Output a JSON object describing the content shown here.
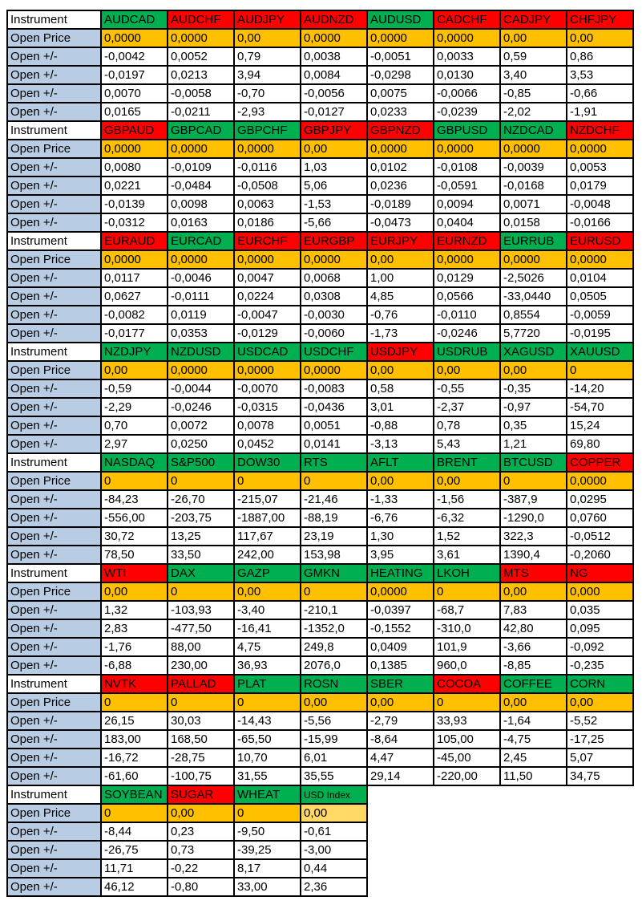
{
  "labels": {
    "instrument": "Instrument",
    "open_price": "Open Price",
    "open_change": "Open +/-"
  },
  "colors": {
    "header_green": "#00b050",
    "header_red": "#ff0000",
    "open_price_orange": "#ffc000",
    "open_price_light_orange": "#ffd966",
    "row_label_blue": "#b8cce4",
    "grid_black": "#000000"
  },
  "columns_per_block": 8,
  "blocks": [
    {
      "instruments": [
        {
          "name": "AUDCAD",
          "color": "green",
          "open_price": "0,0000",
          "changes": [
            "-0,0042",
            "-0,0197",
            "0,0070",
            "0,0165"
          ]
        },
        {
          "name": "AUDCHF",
          "color": "red",
          "open_price": "0,0000",
          "changes": [
            "0,0052",
            "0,0213",
            "-0,0058",
            "-0,0211"
          ]
        },
        {
          "name": "AUDJPY",
          "color": "red",
          "open_price": "0,00",
          "changes": [
            "0,79",
            "3,94",
            "-0,70",
            "-2,93"
          ]
        },
        {
          "name": "AUDNZD",
          "color": "red",
          "open_price": "0,0000",
          "changes": [
            "0,0038",
            "0,0084",
            "-0,0056",
            "-0,0127"
          ]
        },
        {
          "name": "AUDUSD",
          "color": "green",
          "open_price": "0,0000",
          "changes": [
            "-0,0051",
            "-0,0298",
            "0,0075",
            "0,0233"
          ]
        },
        {
          "name": "CADCHF",
          "color": "red",
          "open_price": "0,0000",
          "changes": [
            "0,0033",
            "0,0130",
            "-0,0066",
            "-0,0239"
          ]
        },
        {
          "name": "CADJPY",
          "color": "red",
          "open_price": "0,00",
          "changes": [
            "0,59",
            "3,40",
            "-0,85",
            "-2,02"
          ]
        },
        {
          "name": "CHFJPY",
          "color": "red",
          "open_price": "0,00",
          "changes": [
            "0,86",
            "3,53",
            "-0,66",
            "-1,91"
          ]
        }
      ]
    },
    {
      "instruments": [
        {
          "name": "GBPAUD",
          "color": "red",
          "open_price": "0,0000",
          "changes": [
            "0,0080",
            "0,0221",
            "-0,0139",
            "-0,0312"
          ]
        },
        {
          "name": "GBPCAD",
          "color": "green",
          "open_price": "0,0000",
          "changes": [
            "-0,0109",
            "-0,0484",
            "0,0098",
            "0,0163"
          ]
        },
        {
          "name": "GBPCHF",
          "color": "green",
          "open_price": "0,0000",
          "changes": [
            "-0,0116",
            "-0,0508",
            "0,0063",
            "0,0186"
          ]
        },
        {
          "name": "GBPJPY",
          "color": "red",
          "open_price": "0,00",
          "changes": [
            "1,03",
            "5,06",
            "-1,53",
            "-5,66"
          ]
        },
        {
          "name": "GBPNZD",
          "color": "red",
          "open_price": "0,0000",
          "changes": [
            "0,0102",
            "0,0236",
            "-0,0189",
            "-0,0473"
          ]
        },
        {
          "name": "GBPUSD",
          "color": "green",
          "open_price": "0,0000",
          "changes": [
            "-0,0108",
            "-0,0591",
            "0,0094",
            "0,0404"
          ]
        },
        {
          "name": "NZDCAD",
          "color": "green",
          "open_price": "0,0000",
          "changes": [
            "-0,0039",
            "-0,0168",
            "0,0071",
            "0,0158"
          ]
        },
        {
          "name": "NZDCHF",
          "color": "red",
          "open_price": "0,0000",
          "changes": [
            "0,0053",
            "0,0179",
            "-0,0048",
            "-0,0166"
          ]
        }
      ]
    },
    {
      "instruments": [
        {
          "name": "EURAUD",
          "color": "red",
          "open_price": "0,0000",
          "changes": [
            "0,0117",
            "0,0627",
            "-0,0082",
            "-0,0177"
          ]
        },
        {
          "name": "EURCAD",
          "color": "green",
          "open_price": "0,0000",
          "changes": [
            "-0,0046",
            "-0,0111",
            "0,0119",
            "0,0353"
          ]
        },
        {
          "name": "EURCHF",
          "color": "red",
          "open_price": "0,0000",
          "changes": [
            "0,0047",
            "0,0224",
            "-0,0047",
            "-0,0129"
          ]
        },
        {
          "name": "EURGBP",
          "color": "red",
          "open_price": "0,0000",
          "changes": [
            "0,0068",
            "0,0308",
            "-0,0030",
            "-0,0060"
          ]
        },
        {
          "name": "EURJPY",
          "color": "red",
          "open_price": "0,00",
          "changes": [
            "1,00",
            "4,85",
            "-0,76",
            "-1,73"
          ]
        },
        {
          "name": "EURNZD",
          "color": "red",
          "open_price": "0,0000",
          "changes": [
            "0,0129",
            "0,0566",
            "-0,0110",
            "-0,0246"
          ]
        },
        {
          "name": "EURRUB",
          "color": "green",
          "open_price": "0,0000",
          "changes": [
            "-2,5026",
            "-33,0440",
            "0,8554",
            "5,7720"
          ]
        },
        {
          "name": "EURUSD",
          "color": "red",
          "open_price": "0,0000",
          "changes": [
            "0,0104",
            "0,0505",
            "-0,0059",
            "-0,0195"
          ]
        }
      ]
    },
    {
      "instruments": [
        {
          "name": "NZDJPY",
          "color": "green",
          "open_price": "0,00",
          "changes": [
            "-0,59",
            "-2,29",
            "0,70",
            "2,97"
          ]
        },
        {
          "name": "NZDUSD",
          "color": "green",
          "open_price": "0,0000",
          "changes": [
            "-0,0044",
            "-0,0246",
            "0,0072",
            "0,0250"
          ]
        },
        {
          "name": "USDCAD",
          "color": "green",
          "open_price": "0,0000",
          "changes": [
            "-0,0070",
            "-0,0315",
            "0,0078",
            "0,0452"
          ]
        },
        {
          "name": "USDCHF",
          "color": "green",
          "open_price": "0,0000",
          "changes": [
            "-0,0083",
            "-0,0436",
            "0,0051",
            "0,0141"
          ]
        },
        {
          "name": "USDJPY",
          "color": "red",
          "open_price": "0,00",
          "changes": [
            "0,58",
            "3,01",
            "-0,88",
            "-3,13"
          ]
        },
        {
          "name": "USDRUB",
          "color": "green",
          "open_price": "0,00",
          "changes": [
            "-0,55",
            "-2,37",
            "0,78",
            "5,43"
          ]
        },
        {
          "name": "XAGUSD",
          "color": "green",
          "open_price": "0,00",
          "changes": [
            "-0,35",
            "-0,97",
            "0,35",
            "1,21"
          ]
        },
        {
          "name": "XAUUSD",
          "color": "green",
          "open_price": "0",
          "changes": [
            "-14,20",
            "-54,70",
            "15,24",
            "69,80"
          ]
        }
      ]
    },
    {
      "instruments": [
        {
          "name": "NASDAQ",
          "color": "green",
          "open_price": "0",
          "changes": [
            "-84,23",
            "-556,00",
            "30,72",
            "78,50"
          ]
        },
        {
          "name": "S&P500",
          "color": "green",
          "open_price": "0",
          "changes": [
            "-26,70",
            "-203,75",
            "13,25",
            "33,50"
          ]
        },
        {
          "name": "DOW30",
          "color": "green",
          "open_price": "0",
          "changes": [
            "-215,07",
            "-1887,00",
            "117,67",
            "242,00"
          ]
        },
        {
          "name": "RTS",
          "color": "green",
          "open_price": "0",
          "changes": [
            "-21,46",
            "-88,19",
            "23,19",
            "153,98"
          ]
        },
        {
          "name": "AFLT",
          "color": "green",
          "open_price": "0,00",
          "changes": [
            "-1,33",
            "-6,76",
            "1,30",
            "3,95"
          ]
        },
        {
          "name": "BRENT",
          "color": "green",
          "open_price": "0,00",
          "changes": [
            "-1,56",
            "-6,32",
            "1,52",
            "3,61"
          ]
        },
        {
          "name": "BTCUSD",
          "color": "green",
          "open_price": "0",
          "changes": [
            "-387,9",
            "-1290,0",
            "322,3",
            "1390,4"
          ]
        },
        {
          "name": "COPPER",
          "color": "red",
          "open_price": "0,0000",
          "changes": [
            "0,0295",
            "0,0760",
            "-0,0512",
            "-0,2060"
          ]
        }
      ]
    },
    {
      "instruments": [
        {
          "name": "WTI",
          "color": "red",
          "open_price": "0,00",
          "changes": [
            "1,32",
            "2,83",
            "-1,76",
            "-6,88"
          ]
        },
        {
          "name": "DAX",
          "color": "green",
          "open_price": "0",
          "changes": [
            "-103,93",
            "-477,50",
            "88,00",
            "230,00"
          ]
        },
        {
          "name": "GAZP",
          "color": "green",
          "open_price": "0,00",
          "changes": [
            "-3,40",
            "-16,41",
            "4,75",
            "36,93"
          ]
        },
        {
          "name": "GMKN",
          "color": "green",
          "open_price": "0",
          "changes": [
            "-210,1",
            "-1352,0",
            "249,8",
            "2076,0"
          ]
        },
        {
          "name": "HEATING",
          "color": "green",
          "open_price": "0,0000",
          "changes": [
            "-0,0397",
            "-0,1552",
            "0,0409",
            "0,1385"
          ]
        },
        {
          "name": "LKOH",
          "color": "green",
          "open_price": "0",
          "changes": [
            "-68,7",
            "-310,0",
            "101,9",
            "960,0"
          ]
        },
        {
          "name": "MTS",
          "color": "red",
          "open_price": "0,00",
          "changes": [
            "7,83",
            "42,80",
            "-3,66",
            "-8,85"
          ]
        },
        {
          "name": "NG",
          "color": "red",
          "open_price": "0,000",
          "changes": [
            "0,035",
            "0,095",
            "-0,092",
            "-0,235"
          ]
        }
      ]
    },
    {
      "instruments": [
        {
          "name": "NVTK",
          "color": "red",
          "open_price": "0",
          "changes": [
            "26,15",
            "183,00",
            "-16,72",
            "-61,60"
          ]
        },
        {
          "name": "PALLAD",
          "color": "red",
          "open_price": "0",
          "changes": [
            "30,03",
            "168,50",
            "-28,75",
            "-100,75"
          ]
        },
        {
          "name": "PLAT",
          "color": "green",
          "open_price": "0",
          "changes": [
            "-14,43",
            "-65,50",
            "10,70",
            "31,55"
          ]
        },
        {
          "name": "ROSN",
          "color": "green",
          "open_price": "0,00",
          "changes": [
            "-5,56",
            "-15,99",
            "6,01",
            "35,55"
          ]
        },
        {
          "name": "SBER",
          "color": "green",
          "open_price": "0,00",
          "changes": [
            "-2,79",
            "-8,64",
            "4,47",
            "29,14"
          ]
        },
        {
          "name": "COCOA",
          "color": "red",
          "open_price": "0",
          "changes": [
            "33,93",
            "105,00",
            "-45,00",
            "-220,00"
          ]
        },
        {
          "name": "COFFEE",
          "color": "green",
          "open_price": "0,00",
          "changes": [
            "-1,64",
            "-4,75",
            "2,45",
            "11,50"
          ]
        },
        {
          "name": "CORN",
          "color": "green",
          "open_price": "0,00",
          "changes": [
            "-5,52",
            "-17,25",
            "5,07",
            "34,75"
          ]
        }
      ]
    },
    {
      "instruments": [
        {
          "name": "SOYBEAN",
          "color": "green",
          "open_price": "0",
          "changes": [
            "-8,44",
            "-26,75",
            "11,71",
            "46,12"
          ]
        },
        {
          "name": "SUGAR",
          "color": "red",
          "open_price": "0,00",
          "changes": [
            "0,23",
            "0,73",
            "-0,22",
            "-0,80"
          ]
        },
        {
          "name": "WHEAT",
          "color": "green",
          "open_price": "0",
          "changes": [
            "-9,50",
            "-39,25",
            "8,17",
            "33,00"
          ]
        },
        {
          "name": "USD Index",
          "color": "green",
          "open_price": "0,00",
          "small_header": true,
          "open_price_light": true,
          "changes": [
            "-0,61",
            "-3,00",
            "0,44",
            "2,36"
          ]
        }
      ]
    }
  ]
}
